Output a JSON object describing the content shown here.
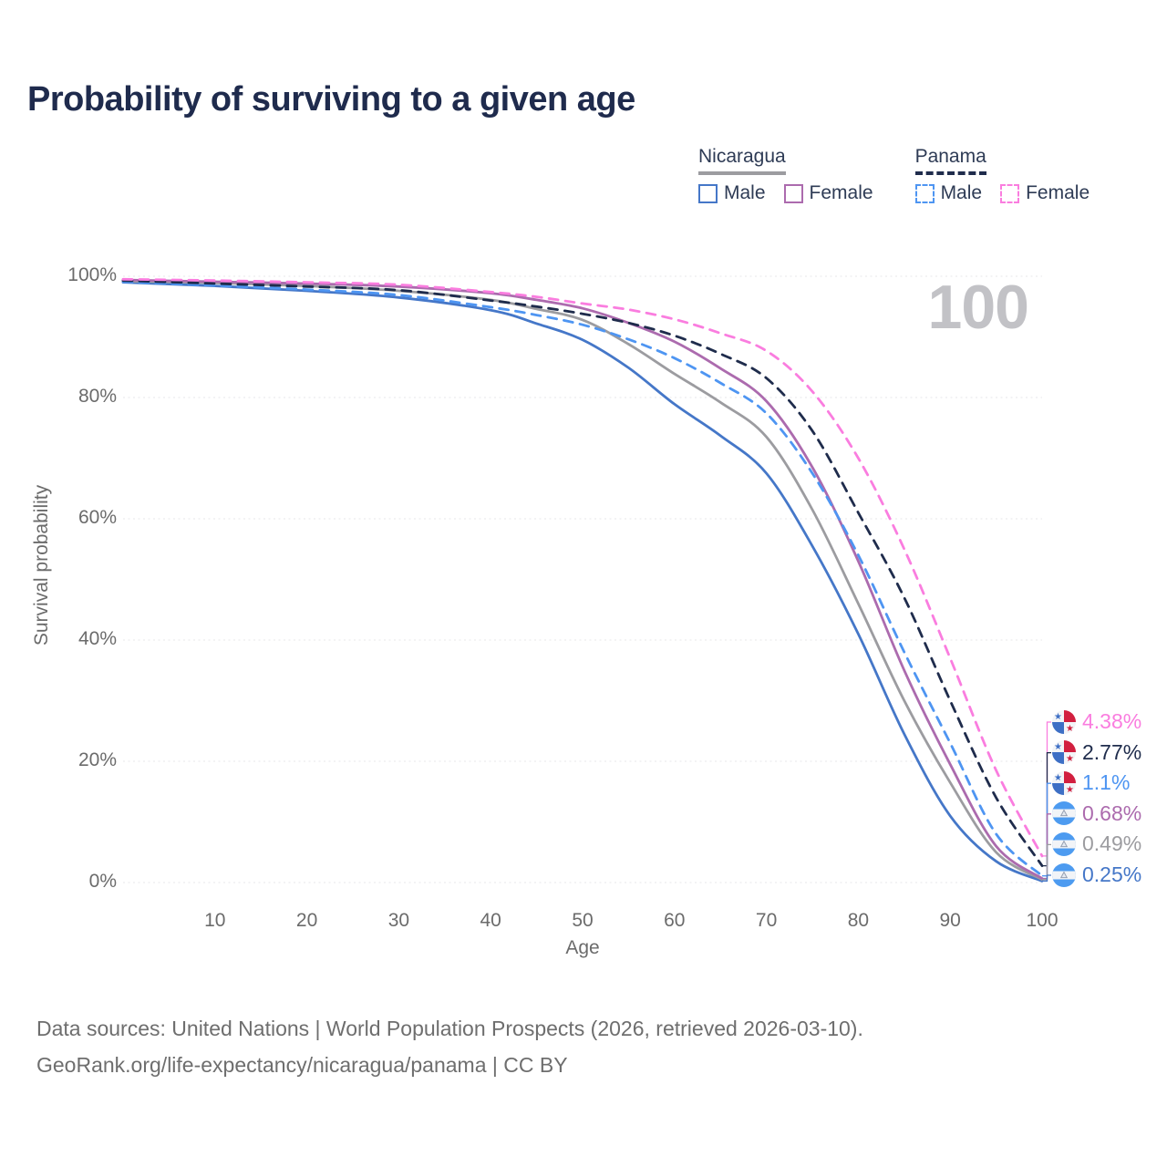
{
  "title": "Probability of surviving to a given age",
  "watermark": "100",
  "legend": {
    "groups": [
      {
        "name": "Nicaragua",
        "line_style": "solid",
        "underline_color": "#9C9CA0",
        "entries": [
          {
            "label": "Male",
            "color": "#4577C8",
            "dashed": false
          },
          {
            "label": "Female",
            "color": "#AC6BAE",
            "dashed": false
          }
        ]
      },
      {
        "name": "Panama",
        "line_style": "dashed",
        "underline_color": "#1F2C4C",
        "entries": [
          {
            "label": "Male",
            "color": "#4E95F2",
            "dashed": true
          },
          {
            "label": "Female",
            "color": "#FA7DDF",
            "dashed": true
          }
        ]
      }
    ]
  },
  "chart_data": {
    "type": "line",
    "title": "Probability of surviving to a given age",
    "xlabel": "Age",
    "ylabel": "Survival probability",
    "xlim": [
      0,
      100
    ],
    "ylim": [
      0,
      100
    ],
    "grid": "horizontal-dotted",
    "legend_position": "top-right",
    "x_ticks": [
      10,
      20,
      30,
      40,
      50,
      60,
      70,
      80,
      90,
      100
    ],
    "y_ticks": [
      {
        "label": "0%",
        "value": 0
      },
      {
        "label": "20%",
        "value": 20
      },
      {
        "label": "40%",
        "value": 40
      },
      {
        "label": "60%",
        "value": 60
      },
      {
        "label": "80%",
        "value": 80
      },
      {
        "label": "100%",
        "value": 100
      }
    ],
    "ages": [
      0,
      10,
      20,
      30,
      40,
      45,
      50,
      55,
      60,
      65,
      70,
      75,
      80,
      85,
      90,
      95,
      100
    ],
    "series": [
      {
        "name": "Panama Female",
        "country": "Panama",
        "sex": "Female",
        "color": "#FA7DDF",
        "dashed": true,
        "flag": "panama",
        "end_label": "4.38%",
        "values": [
          99.5,
          99.3,
          99.0,
          98.6,
          97.4,
          96.6,
          95.5,
          94.5,
          92.9,
          90.6,
          87.7,
          81.0,
          70.0,
          55.0,
          37.0,
          18.5,
          4.38
        ]
      },
      {
        "name": "Panama",
        "country": "Panama",
        "sex": "Both",
        "color": "#1F2C4C",
        "dashed": true,
        "flag": "panama",
        "end_label": "2.77%",
        "values": [
          99.3,
          98.8,
          98.3,
          97.7,
          96.0,
          95.0,
          93.8,
          92.3,
          90.2,
          87.2,
          83.2,
          74.5,
          61.0,
          47.0,
          30.0,
          14.0,
          2.77
        ]
      },
      {
        "name": "Panama Male",
        "country": "Panama",
        "sex": "Male",
        "color": "#4E95F2",
        "dashed": true,
        "flag": "panama",
        "end_label": "1.1%",
        "values": [
          99.1,
          98.5,
          97.8,
          96.9,
          94.9,
          93.6,
          92.0,
          89.6,
          86.5,
          82.4,
          77.4,
          67.5,
          54.0,
          38.0,
          23.0,
          8.0,
          1.1
        ]
      },
      {
        "name": "Nicaragua Female",
        "country": "Nicaragua",
        "sex": "Female",
        "color": "#AC6BAE",
        "dashed": false,
        "flag": "nicaragua",
        "end_label": "0.68%",
        "values": [
          99.4,
          99.1,
          98.8,
          98.3,
          97.2,
          96.1,
          94.7,
          92.3,
          89.2,
          84.8,
          79.4,
          68.5,
          53.0,
          35.0,
          19.5,
          6.0,
          0.68
        ]
      },
      {
        "name": "Nicaragua",
        "country": "Nicaragua",
        "sex": "Both",
        "color": "#9C9CA0",
        "dashed": false,
        "flag": "nicaragua",
        "end_label": "0.49%",
        "values": [
          99.2,
          98.9,
          98.4,
          97.6,
          96.1,
          94.6,
          92.8,
          88.8,
          83.9,
          79.2,
          73.5,
          61.5,
          46.0,
          30.0,
          16.5,
          5.0,
          0.49
        ]
      },
      {
        "name": "Nicaragua Male",
        "country": "Nicaragua",
        "sex": "Male",
        "color": "#4577C8",
        "dashed": false,
        "flag": "nicaragua",
        "end_label": "0.25%",
        "values": [
          99.0,
          98.4,
          97.6,
          96.5,
          94.4,
          92.2,
          89.5,
          84.9,
          78.9,
          73.7,
          67.5,
          55.5,
          41.0,
          24.5,
          11.0,
          3.5,
          0.25
        ]
      }
    ]
  },
  "flag_colors": {
    "panama_red": "#D21F3F",
    "panama_blue": "#3D6FC5",
    "nicaragua_blue": "#4D9BF0",
    "flag_white": "#F2F4F7"
  },
  "footer": {
    "line1": "Data sources: United Nations | World Population Prospects (2026, retrieved 2026-03-10).",
    "line2": "GeoRank.org/life-expectancy/nicaragua/panama | CC BY"
  }
}
